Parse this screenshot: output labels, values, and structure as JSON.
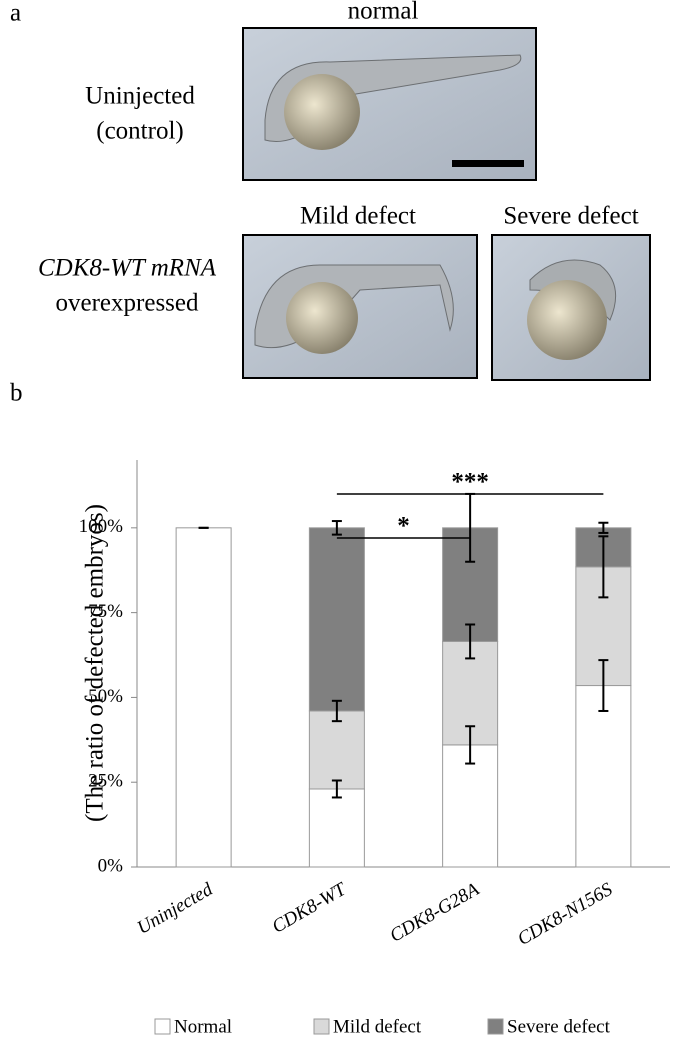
{
  "panel_a": {
    "label": "a",
    "top_title": "normal",
    "row1_label": [
      "Uninjected",
      "(control)"
    ],
    "mild_title": "Mild defect",
    "severe_title": "Severe defect",
    "row2_label": [
      "CDK8-WT mRNA",
      "overexpressed"
    ]
  },
  "chart_data": {
    "type": "stacked_bar",
    "panel_label": "b",
    "y_label": "(The ratio of defected embryos)",
    "categories": [
      "Uninjected",
      "CDK8-WT",
      "CDK8-G28A",
      "CDK8-N156S"
    ],
    "series": [
      {
        "name": "Normal",
        "color": "#ffffff",
        "values": [
          100,
          23,
          36,
          53.5
        ],
        "errors": [
          0,
          2.5,
          5.5,
          7.5
        ]
      },
      {
        "name": "Mild defect",
        "color": "#d9d9d9",
        "values": [
          0,
          23,
          30.5,
          35
        ],
        "errors": [
          null,
          3,
          5,
          9
        ]
      },
      {
        "name": "Severe defect",
        "color": "#808080",
        "values": [
          0,
          54,
          33.5,
          11.5
        ],
        "errors": [
          null,
          2,
          10,
          1.5
        ]
      }
    ],
    "ylim": [
      0,
      120
    ],
    "yticks": [
      {
        "value": 0,
        "label": "0%"
      },
      {
        "value": 25,
        "label": "25%"
      },
      {
        "value": 50,
        "label": "50%"
      },
      {
        "value": 75,
        "label": "75%"
      },
      {
        "value": 100,
        "label": "100%"
      }
    ],
    "annotations": [
      {
        "text": "***",
        "from": "CDK8-WT",
        "to": "CDK8-N156S"
      },
      {
        "text": "*",
        "from": "CDK8-WT",
        "to": "CDK8-G28A"
      }
    ]
  }
}
